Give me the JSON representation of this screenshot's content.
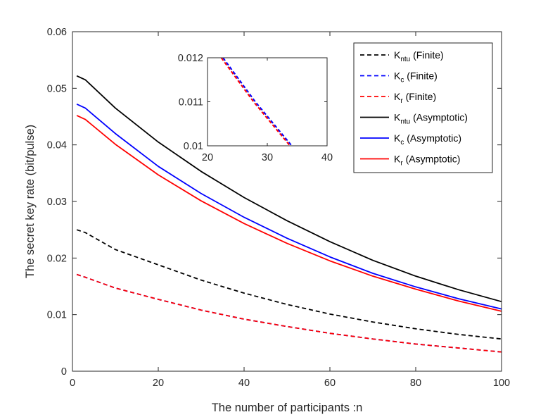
{
  "chart_data": {
    "type": "line",
    "title": "",
    "xlabel": "The number of participants :n",
    "ylabel": "The secret key rate (bit/pulse)",
    "xlim": [
      0,
      100
    ],
    "ylim": [
      0,
      0.06
    ],
    "xticks": [
      0,
      20,
      40,
      60,
      80,
      100
    ],
    "yticks": [
      0,
      0.01,
      0.02,
      0.03,
      0.04,
      0.05,
      0.06
    ],
    "xtick_labels": [
      "0",
      "20",
      "40",
      "60",
      "80",
      "100"
    ],
    "ytick_labels": [
      "0",
      "0.01",
      "0.02",
      "0.03",
      "0.04",
      "0.05",
      "0.06"
    ],
    "grid": false,
    "legend_position": "top-right",
    "x": [
      1,
      3,
      10,
      20,
      30,
      40,
      50,
      60,
      70,
      80,
      90,
      100
    ],
    "series": [
      {
        "name": "K_ntu (Finite)",
        "base": "K",
        "sub": "ntu",
        "suffix": "(Finite)",
        "color": "#000000",
        "dash": true,
        "values": [
          0.025,
          0.0245,
          0.0215,
          0.0188,
          0.0161,
          0.0138,
          0.0118,
          0.0101,
          0.0087,
          0.0075,
          0.0065,
          0.0057
        ]
      },
      {
        "name": "K_c (Finite)",
        "base": "K",
        "sub": "c",
        "suffix": "(Finite)",
        "color": "#0000ff",
        "dash": true,
        "values": [
          0.0171,
          0.0166,
          0.0147,
          0.0127,
          0.0108,
          0.0092,
          0.0079,
          0.0067,
          0.0057,
          0.0048,
          0.0041,
          0.0034
        ]
      },
      {
        "name": "K_r (Finite)",
        "base": "K",
        "sub": "r",
        "suffix": "(Finite)",
        "color": "#ff0000",
        "dash": true,
        "values": [
          0.0171,
          0.0166,
          0.0147,
          0.0127,
          0.0108,
          0.0092,
          0.0079,
          0.0067,
          0.0057,
          0.0048,
          0.0041,
          0.0034
        ]
      },
      {
        "name": "K_ntu (Asymptotic)",
        "base": "K",
        "sub": "ntu",
        "suffix": "(Asymptotic)",
        "color": "#000000",
        "dash": false,
        "values": [
          0.0522,
          0.0515,
          0.0465,
          0.0405,
          0.0353,
          0.0307,
          0.0266,
          0.0229,
          0.0196,
          0.0168,
          0.0144,
          0.0123
        ]
      },
      {
        "name": "K_c (Asymptotic)",
        "base": "K",
        "sub": "c",
        "suffix": "(Asymptotic)",
        "color": "#0000ff",
        "dash": false,
        "values": [
          0.0472,
          0.0465,
          0.042,
          0.0362,
          0.0314,
          0.0272,
          0.0235,
          0.0202,
          0.0173,
          0.0149,
          0.0128,
          0.011
        ]
      },
      {
        "name": "K_r (Asymptotic)",
        "base": "K",
        "sub": "r",
        "suffix": "(Asymptotic)",
        "color": "#ff0000",
        "dash": false,
        "values": [
          0.0452,
          0.0445,
          0.0401,
          0.0347,
          0.0301,
          0.0261,
          0.0226,
          0.0195,
          0.0168,
          0.0145,
          0.0124,
          0.0106
        ]
      }
    ],
    "inset": {
      "xlim": [
        20,
        40
      ],
      "ylim": [
        0.01,
        0.012
      ],
      "xticks": [
        20,
        30,
        40
      ],
      "yticks": [
        0.01,
        0.011,
        0.012
      ],
      "xtick_labels": [
        "20",
        "30",
        "40"
      ],
      "ytick_labels": [
        "0.01",
        "0.011",
        "0.012"
      ],
      "series": [
        {
          "name": "K_c (Finite) zoom",
          "color": "#0000ff",
          "x": [
            22.6,
            28,
            34.1
          ],
          "values": [
            0.012,
            0.011,
            0.01
          ]
        },
        {
          "name": "K_r (Finite) zoom",
          "color": "#ff0000",
          "x": [
            22.3,
            27.7,
            33.8
          ],
          "values": [
            0.012,
            0.011,
            0.01
          ]
        }
      ]
    }
  }
}
